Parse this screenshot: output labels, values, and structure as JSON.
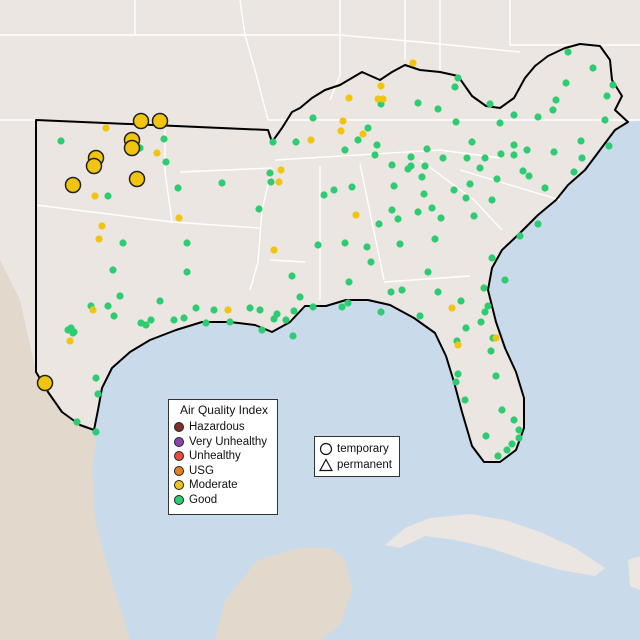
{
  "legend": {
    "title": "Air Quality Index",
    "categories": [
      {
        "label": "Hazardous",
        "color": "#7e2f2a"
      },
      {
        "label": "Very Unhealthy",
        "color": "#8e44ad"
      },
      {
        "label": "Unhealthy",
        "color": "#e74c3c"
      },
      {
        "label": "USG",
        "color": "#e67e22"
      },
      {
        "label": "Moderate",
        "color": "#f1c40f"
      },
      {
        "label": "Good",
        "color": "#2ecc71"
      }
    ]
  },
  "monitor_legend": {
    "temporary_label": "temporary",
    "permanent_label": "permanent"
  },
  "colors": {
    "water": "#c9dbea",
    "land": "#ebe6e1",
    "mexico_land": "#e3d8cc",
    "state_border": "#ffffff",
    "region_outline": "#000000"
  }
}
